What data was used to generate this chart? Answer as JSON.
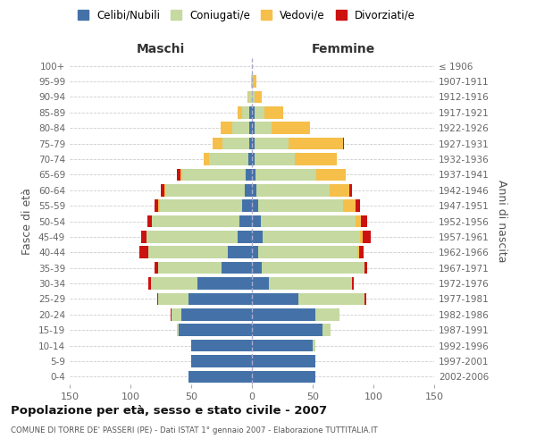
{
  "age_groups": [
    "100+",
    "95-99",
    "90-94",
    "85-89",
    "80-84",
    "75-79",
    "70-74",
    "65-69",
    "60-64",
    "55-59",
    "50-54",
    "45-49",
    "40-44",
    "35-39",
    "30-34",
    "25-29",
    "20-24",
    "15-19",
    "10-14",
    "5-9",
    "0-4"
  ],
  "birth_years": [
    "≤ 1906",
    "1907-1911",
    "1912-1916",
    "1917-1921",
    "1922-1926",
    "1927-1931",
    "1932-1936",
    "1937-1941",
    "1942-1946",
    "1947-1951",
    "1952-1956",
    "1957-1961",
    "1962-1966",
    "1967-1971",
    "1972-1976",
    "1977-1981",
    "1982-1986",
    "1987-1991",
    "1992-1996",
    "1997-2001",
    "2002-2006"
  ],
  "male_celibi": [
    0,
    0,
    0,
    2,
    2,
    2,
    3,
    5,
    6,
    8,
    10,
    12,
    20,
    25,
    45,
    52,
    58,
    60,
    50,
    50,
    52
  ],
  "male_coniugati": [
    0,
    1,
    3,
    6,
    14,
    22,
    32,
    52,
    65,
    68,
    72,
    75,
    65,
    52,
    38,
    25,
    8,
    2,
    0,
    0,
    0
  ],
  "male_vedovi": [
    0,
    0,
    1,
    4,
    10,
    8,
    5,
    2,
    1,
    1,
    0,
    0,
    0,
    0,
    0,
    0,
    0,
    0,
    0,
    0,
    0
  ],
  "male_divorziati": [
    0,
    0,
    0,
    0,
    0,
    0,
    0,
    3,
    3,
    3,
    4,
    4,
    8,
    3,
    2,
    1,
    1,
    0,
    0,
    0,
    0
  ],
  "female_celibi": [
    0,
    0,
    0,
    2,
    2,
    2,
    2,
    3,
    4,
    5,
    7,
    9,
    5,
    8,
    14,
    38,
    52,
    58,
    50,
    52,
    52
  ],
  "female_coniugati": [
    0,
    1,
    2,
    8,
    14,
    28,
    33,
    50,
    60,
    70,
    78,
    80,
    82,
    85,
    68,
    55,
    20,
    7,
    2,
    0,
    0
  ],
  "female_vedovi": [
    0,
    3,
    6,
    16,
    32,
    45,
    35,
    24,
    16,
    10,
    5,
    2,
    1,
    0,
    0,
    0,
    0,
    0,
    0,
    0,
    0
  ],
  "female_divorziati": [
    0,
    0,
    0,
    0,
    0,
    1,
    0,
    0,
    2,
    4,
    5,
    7,
    4,
    2,
    2,
    1,
    0,
    0,
    0,
    0,
    0
  ],
  "colors": {
    "celibi": "#4472a8",
    "coniugati": "#c5d9a0",
    "vedovi": "#f5bf4a",
    "divorziati": "#cc1111"
  },
  "title": "Popolazione per età, sesso e stato civile - 2007",
  "subtitle": "COMUNE DI TORRE DE' PASSERI (PE) - Dati ISTAT 1° gennaio 2007 - Elaborazione TUTTITALIA.IT",
  "xlabel_left": "Maschi",
  "xlabel_right": "Femmine",
  "ylabel_left": "Fasce di età",
  "ylabel_right": "Anni di nascita",
  "xlim": 150,
  "legend_labels": [
    "Celibi/Nubili",
    "Coniugati/e",
    "Vedovi/e",
    "Divorziati/e"
  ],
  "bg_color": "#ffffff",
  "grid_color": "#cccccc"
}
